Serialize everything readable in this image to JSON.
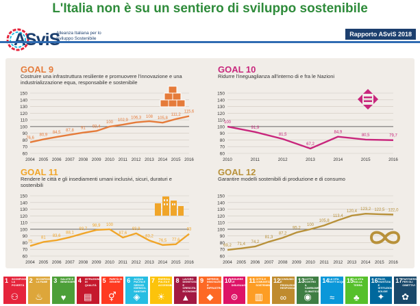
{
  "title": "L'Italia non è su un sentiero di sviluppo sostenibile",
  "logo": {
    "name": "ASviS",
    "subtitle": "Alleanza Italiana per lo Sviluppo Sostenibile"
  },
  "report_label": "Rapporto ASviS 2018",
  "colors": {
    "goal9": "#e57b3a",
    "goal10": "#c8267c",
    "goal11": "#f0a529",
    "goal12": "#b8913a",
    "title": "#2e8b3a"
  },
  "chart_data": [
    {
      "type": "line",
      "title": "GOAL 9",
      "subtitle": "Costruire una infrastruttura resiliente e promuovere l'innovazione e una industrializzazione equa, responsabile e sostenibile",
      "x": [
        "2004",
        "2005",
        "2006",
        "2007",
        "2008",
        "2009",
        "2010",
        "2011",
        "2012",
        "2013",
        "2014",
        "2015",
        "2016"
      ],
      "values": [
        76.6,
        80.9,
        84.5,
        87.8,
        91,
        93.4,
        100,
        102.9,
        106.3,
        108,
        105.8,
        111.2,
        115.6
      ],
      "labels": [
        "76,6",
        "80,9",
        "84,5",
        "87,8",
        "91",
        "93,4",
        "100",
        "102,9",
        "106,3",
        "108",
        "105,8",
        "111,2",
        "115,6"
      ],
      "yticks": [
        60,
        70,
        80,
        90,
        100,
        110,
        120,
        130,
        140,
        150
      ],
      "ylim": [
        60,
        150
      ],
      "reference": 100,
      "icon": "cubes-icon"
    },
    {
      "type": "line",
      "title": "GOAL 10",
      "subtitle": "Ridurre l'ineguaglianza all'interno di e fra le Nazioni",
      "x": [
        "2010",
        "2011",
        "2012",
        "2013",
        "2014",
        "2015",
        "2016"
      ],
      "values": [
        100,
        91.9,
        81.5,
        67.2,
        84.9,
        80.5,
        79.7
      ],
      "labels": [
        "100",
        "91,9",
        "81,5",
        "67,2",
        "84,9",
        "80,5",
        "79,7"
      ],
      "yticks": [
        60,
        70,
        80,
        90,
        100,
        110,
        120,
        130,
        140,
        150
      ],
      "ylim": [
        60,
        150
      ],
      "reference": 100,
      "icon": "equality-arrows-icon"
    },
    {
      "type": "line",
      "title": "GOAL 11",
      "subtitle": "Rendere le città e gli insediamenti umani inclusivi, sicuri, duraturi e sostenibili",
      "x": [
        "2004",
        "2005",
        "2006",
        "2007",
        "2008",
        "2009",
        "2010",
        "2011",
        "2012",
        "2013",
        "2014",
        "2015",
        "2016"
      ],
      "values": [
        75,
        81,
        83.6,
        88.1,
        93.7,
        98.9,
        100,
        87.6,
        93.9,
        83.2,
        76.5,
        77.6,
        93
      ],
      "labels": [
        "75",
        "81",
        "83,6",
        "88,1",
        "93,7",
        "98,9",
        "100",
        "87,6",
        "93,9",
        "83,2",
        "76,5",
        "77,6",
        "93"
      ],
      "yticks": [
        60,
        70,
        80,
        90,
        100,
        110,
        120,
        130,
        140,
        150
      ],
      "ylim": [
        60,
        150
      ],
      "reference": 100,
      "icon": "buildings-icon"
    },
    {
      "type": "line",
      "title": "GOAL 12",
      "subtitle": "Garantire modelli sostenibili di produzione e di consumo",
      "x": [
        "2004",
        "2005",
        "2006",
        "2007",
        "2008",
        "2009",
        "2010",
        "2011",
        "2012",
        "2013",
        "2014",
        "2015",
        "2016"
      ],
      "values": [
        69.2,
        71.4,
        74.2,
        81.3,
        87.2,
        95.2,
        100,
        105.8,
        113.4,
        120.4,
        123.2,
        122.5,
        122
      ],
      "labels": [
        "69,2",
        "71,4",
        "74,2",
        "81,3",
        "87,2",
        "95,2",
        "100",
        "105,8",
        "113,4",
        "120,4",
        "123,2",
        "122,5",
        "122,0"
      ],
      "yticks": [
        60,
        70,
        80,
        90,
        100,
        110,
        120,
        130,
        140,
        150
      ],
      "ylim": [
        60,
        150
      ],
      "reference": 100,
      "icon": "infinity-icon"
    }
  ],
  "sdg": [
    {
      "num": "1",
      "name": "SCONFIGGERE LA POVERTÀ",
      "color": "#e5243b",
      "glyph": "⚇"
    },
    {
      "num": "2",
      "name": "SCONFIGGERE LA FAME",
      "color": "#dda63a",
      "glyph": "♨"
    },
    {
      "num": "3",
      "name": "SALUTE E BENESSERE",
      "color": "#4c9f38",
      "glyph": "♥"
    },
    {
      "num": "4",
      "name": "ISTRUZIONE DI QUALITÀ",
      "color": "#c5192d",
      "glyph": "▤"
    },
    {
      "num": "5",
      "name": "PARITÀ DI GENERE",
      "color": "#ff3a21",
      "glyph": "⚥"
    },
    {
      "num": "6",
      "name": "ACQUA PULITA E SERVIZI IGIENICO-SANITARI",
      "color": "#26bde2",
      "glyph": "◈"
    },
    {
      "num": "7",
      "name": "ENERGIA PULITA E ACCESSIBILE",
      "color": "#fcc30b",
      "glyph": "☀"
    },
    {
      "num": "8",
      "name": "LAVORO DIGNITOSO E CRESCITA ECONOMICA",
      "color": "#a21942",
      "glyph": "▲"
    },
    {
      "num": "9",
      "name": "IMPRESE, INNOVAZIONE E INFRASTRUTTURE",
      "color": "#fd6925",
      "glyph": "◆"
    },
    {
      "num": "10",
      "name": "RIDURRE LE DISUGUAGLIANZE",
      "color": "#dd1367",
      "glyph": "⊜"
    },
    {
      "num": "11",
      "name": "CITTÀ E COMUNITÀ SOSTENIBILI",
      "color": "#fd9d24",
      "glyph": "▥"
    },
    {
      "num": "12",
      "name": "CONSUMO E PRODUZIONE RESPONSABILI",
      "color": "#bf8b2e",
      "glyph": "∞"
    },
    {
      "num": "13",
      "name": "LOTTA CONTRO IL CAMBIAMENTO CLIMATICO",
      "color": "#3f7e44",
      "glyph": "◉"
    },
    {
      "num": "14",
      "name": "LA VITA SOTT'ACQUA",
      "color": "#0a97d9",
      "glyph": "≈"
    },
    {
      "num": "15",
      "name": "LA VITA SULLA TERRA",
      "color": "#56c02b",
      "glyph": "♣"
    },
    {
      "num": "16",
      "name": "PACE, GIUSTIZIA E ISTITUZIONI SOLIDE",
      "color": "#00689d",
      "glyph": "✦"
    },
    {
      "num": "17",
      "name": "PARTNERSHIP PER GLI OBIETTIVI",
      "color": "#19486a",
      "glyph": "✿"
    }
  ]
}
